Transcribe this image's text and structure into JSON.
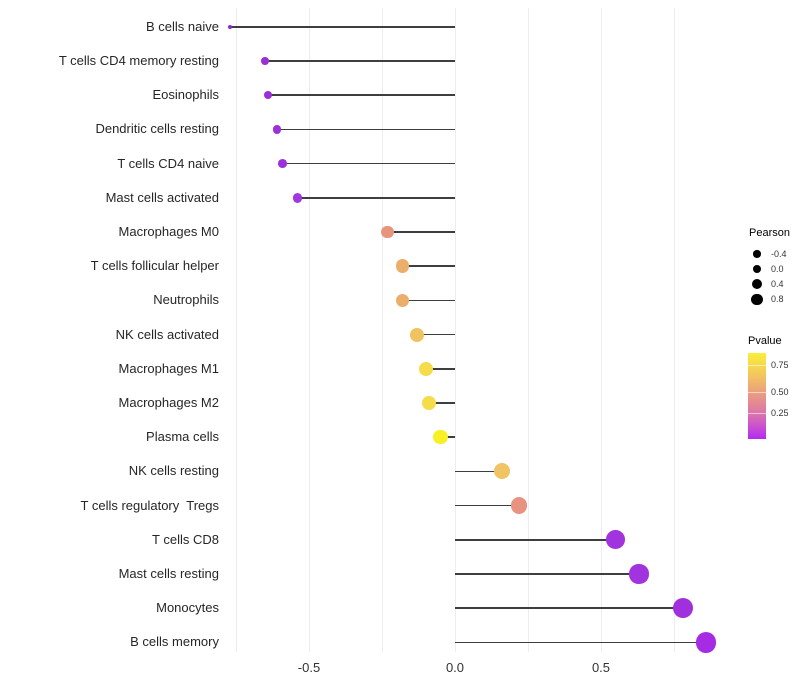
{
  "chart_data": {
    "type": "scatter",
    "variant": "lollipop",
    "orientation": "horizontal",
    "title": "",
    "xlabel": "",
    "ylabel": "",
    "xlim": [
      -0.85,
      0.95
    ],
    "x_ticks": [
      {
        "label": "-0.5",
        "value": -0.5
      },
      {
        "label": "0.0",
        "value": 0.0
      },
      {
        "label": "0.5",
        "value": 0.5
      }
    ],
    "gridline_values": [
      -0.75,
      -0.5,
      -0.25,
      0,
      0.25,
      0.5,
      0.75
    ],
    "grid": "vertical-only",
    "baseline": 0,
    "stem_color": "#3e3e3e",
    "points": [
      {
        "category": "B cells naive",
        "pearson": -0.77,
        "color": "#8B27D0"
      },
      {
        "category": "T cells CD4 memory resting",
        "pearson": -0.65,
        "color": "#9A2FD8"
      },
      {
        "category": "Eosinophils",
        "pearson": -0.64,
        "color": "#9A2FD8"
      },
      {
        "category": "Dendritic cells resting",
        "pearson": -0.61,
        "color": "#9C31DA"
      },
      {
        "category": "T cells CD4 naive",
        "pearson": -0.59,
        "color": "#9C31DA"
      },
      {
        "category": "Mast cells activated",
        "pearson": -0.54,
        "color": "#A137DD"
      },
      {
        "category": "Macrophages M0",
        "pearson": -0.23,
        "color": "#E8957E"
      },
      {
        "category": "T cells follicular helper",
        "pearson": -0.18,
        "color": "#EBAF6B"
      },
      {
        "category": "Neutrophils",
        "pearson": -0.18,
        "color": "#EBAF6B"
      },
      {
        "category": "NK cells activated",
        "pearson": -0.13,
        "color": "#EFC360"
      },
      {
        "category": "Macrophages M1",
        "pearson": -0.1,
        "color": "#F4DC4B"
      },
      {
        "category": "Macrophages M2",
        "pearson": -0.09,
        "color": "#F4DC4B"
      },
      {
        "category": "Plasma cells",
        "pearson": -0.05,
        "color": "#F8EF25"
      },
      {
        "category": "NK cells resting",
        "pearson": 0.16,
        "color": "#F0C364"
      },
      {
        "category": "T cells regulatory  Tregs",
        "pearson": 0.22,
        "color": "#E8927F"
      },
      {
        "category": "T cells CD8",
        "pearson": 0.55,
        "color": "#A134DE"
      },
      {
        "category": "Mast cells resting",
        "pearson": 0.63,
        "color": "#A134DE"
      },
      {
        "category": "Monocytes",
        "pearson": 0.78,
        "color": "#A030DC"
      },
      {
        "category": "B cells memory",
        "pearson": 0.86,
        "color": "#A52CE4"
      }
    ],
    "legend_position": "right",
    "size_legend": {
      "title": "Pearson",
      "entries": [
        {
          "label": "-0.4",
          "value": -0.4
        },
        {
          "label": "0.0",
          "value": 0.0
        },
        {
          "label": "0.4",
          "value": 0.4
        },
        {
          "label": "0.8",
          "value": 0.8
        }
      ]
    },
    "color_legend": {
      "title": "Pvalue",
      "tick_labels": [
        "0.75",
        "0.50",
        "0.25"
      ],
      "gradient_top_to_bottom": [
        "#F9EE38",
        "#F6D94E",
        "#F2C163",
        "#ECA47B",
        "#E58B91",
        "#DB73AC",
        "#CB4FD2",
        "#B02BF2"
      ]
    }
  }
}
